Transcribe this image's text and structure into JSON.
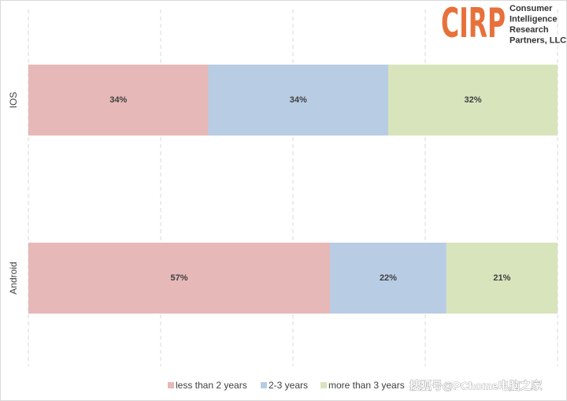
{
  "chart_data": {
    "type": "stacked-bar-horizontal",
    "categories": [
      "IOS",
      "Android"
    ],
    "series": [
      {
        "name": "less than 2 years",
        "color": "#e6b8b7",
        "values": [
          34,
          57
        ],
        "value_labels": [
          "34%",
          "57%"
        ]
      },
      {
        "name": "2-3 years",
        "color": "#b8cce4",
        "values": [
          34,
          22
        ],
        "value_labels": [
          "34%",
          "22%"
        ]
      },
      {
        "name": "more than 3 years",
        "color": "#d8e4bc",
        "values": [
          32,
          21
        ],
        "value_labels": [
          "32%",
          "21%"
        ]
      }
    ],
    "xlim": [
      0,
      100
    ],
    "xgrid": [
      0,
      25,
      50,
      75,
      100
    ],
    "legend": "bottom"
  },
  "logo": {
    "mark": "CIRP",
    "lines": [
      "Consumer",
      "Intelligence",
      "Research",
      "Partners, LLC"
    ]
  },
  "watermark": "搜狐号@PChome电脑之家"
}
